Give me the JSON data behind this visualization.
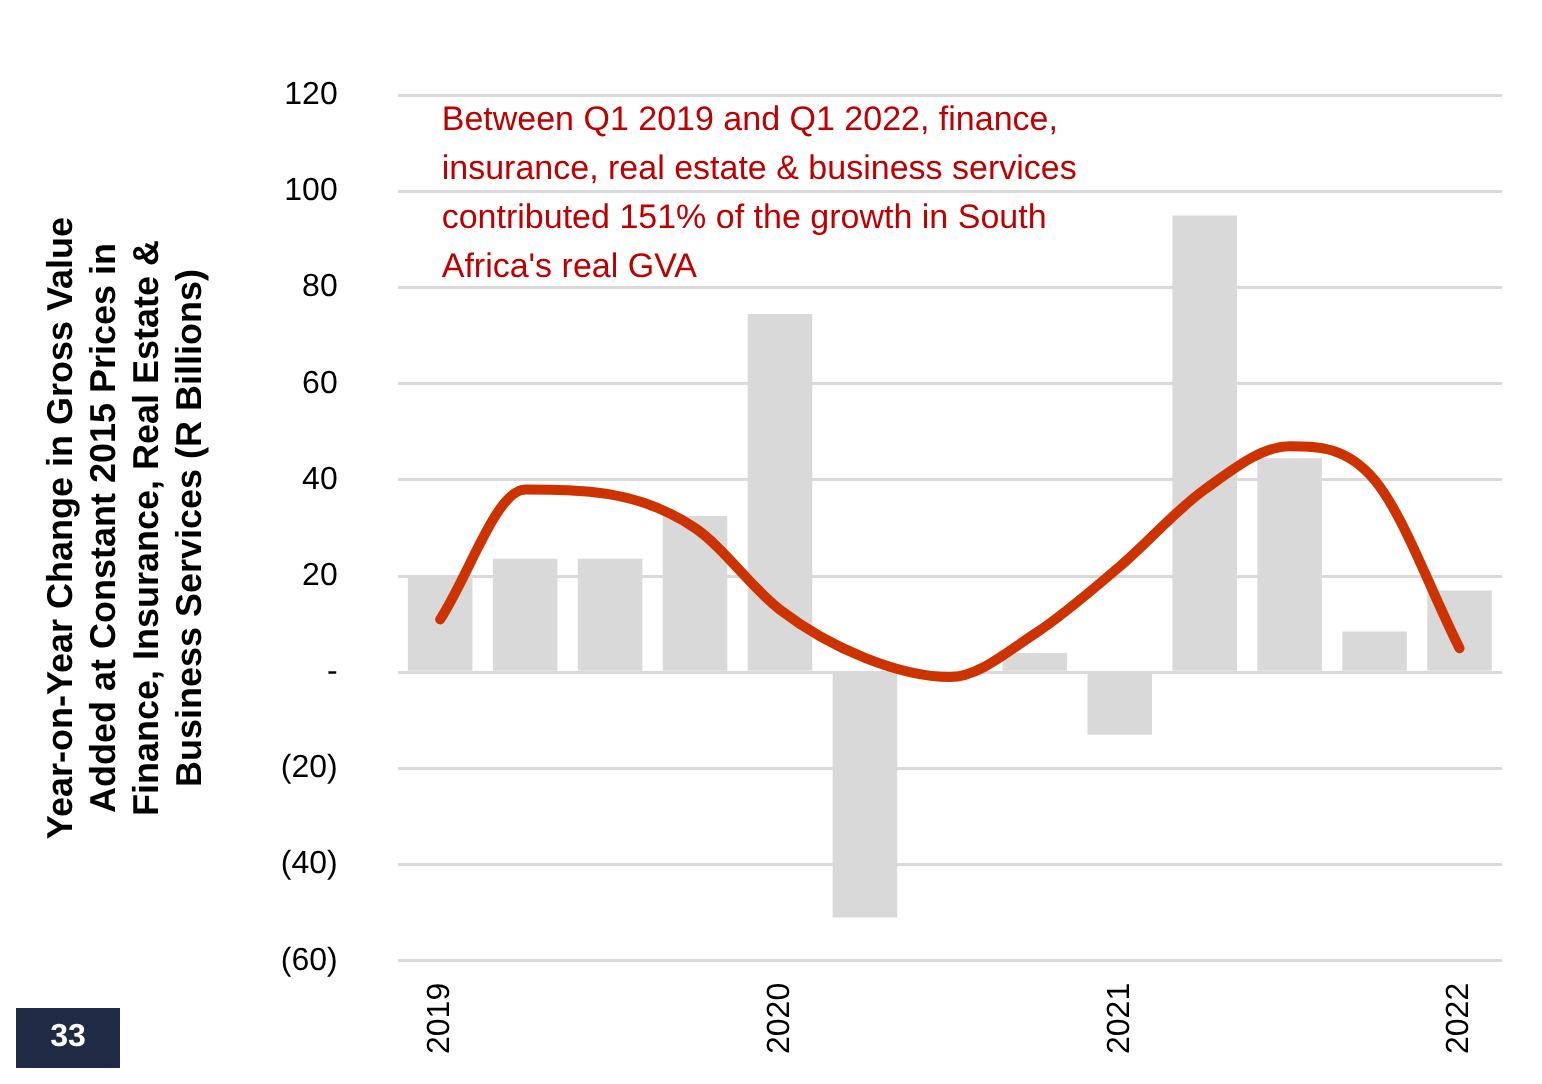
{
  "chart_data": {
    "type": "bar",
    "ylabel": "Year-on-Year Change in Gross Value Added at Constant 2015 Prices in Finance, Insurance, Real Estate & Business Services (R Billions)",
    "annotations": [
      "Between Q1 2019 and Q1 2022, finance, insurance, real estate & business services contributed 151% of the growth in South Africa's real GVA",
      "33"
    ],
    "categories": [
      "2019",
      null,
      null,
      null,
      "2020",
      null,
      null,
      null,
      "2021",
      null,
      null,
      null,
      "2022"
    ],
    "series": [
      {
        "color": "#d9d9d9",
        "values": [
          20,
          23.6,
          23.6,
          32.5,
          74.5,
          -51,
          null,
          4,
          -13,
          95,
          44.5,
          8.5,
          17
        ]
      },
      {
        "type": "line",
        "color": "#cc3300",
        "values": [
          11,
          38,
          37,
          30,
          13,
          3,
          -1,
          8,
          22,
          38,
          47,
          40,
          5
        ]
      }
    ],
    "ylim": [
      -60,
      120
    ],
    "yticks": [
      {
        "value": -60,
        "label": "(60)"
      },
      {
        "value": -40,
        "label": "(40)"
      },
      {
        "value": -20,
        "label": "(20)"
      },
      {
        "value": 0,
        "label": "-"
      },
      20,
      40,
      60,
      80,
      100,
      120
    ],
    "grid": "y",
    "legend": false,
    "marker": "none",
    "line_style": "solid"
  }
}
